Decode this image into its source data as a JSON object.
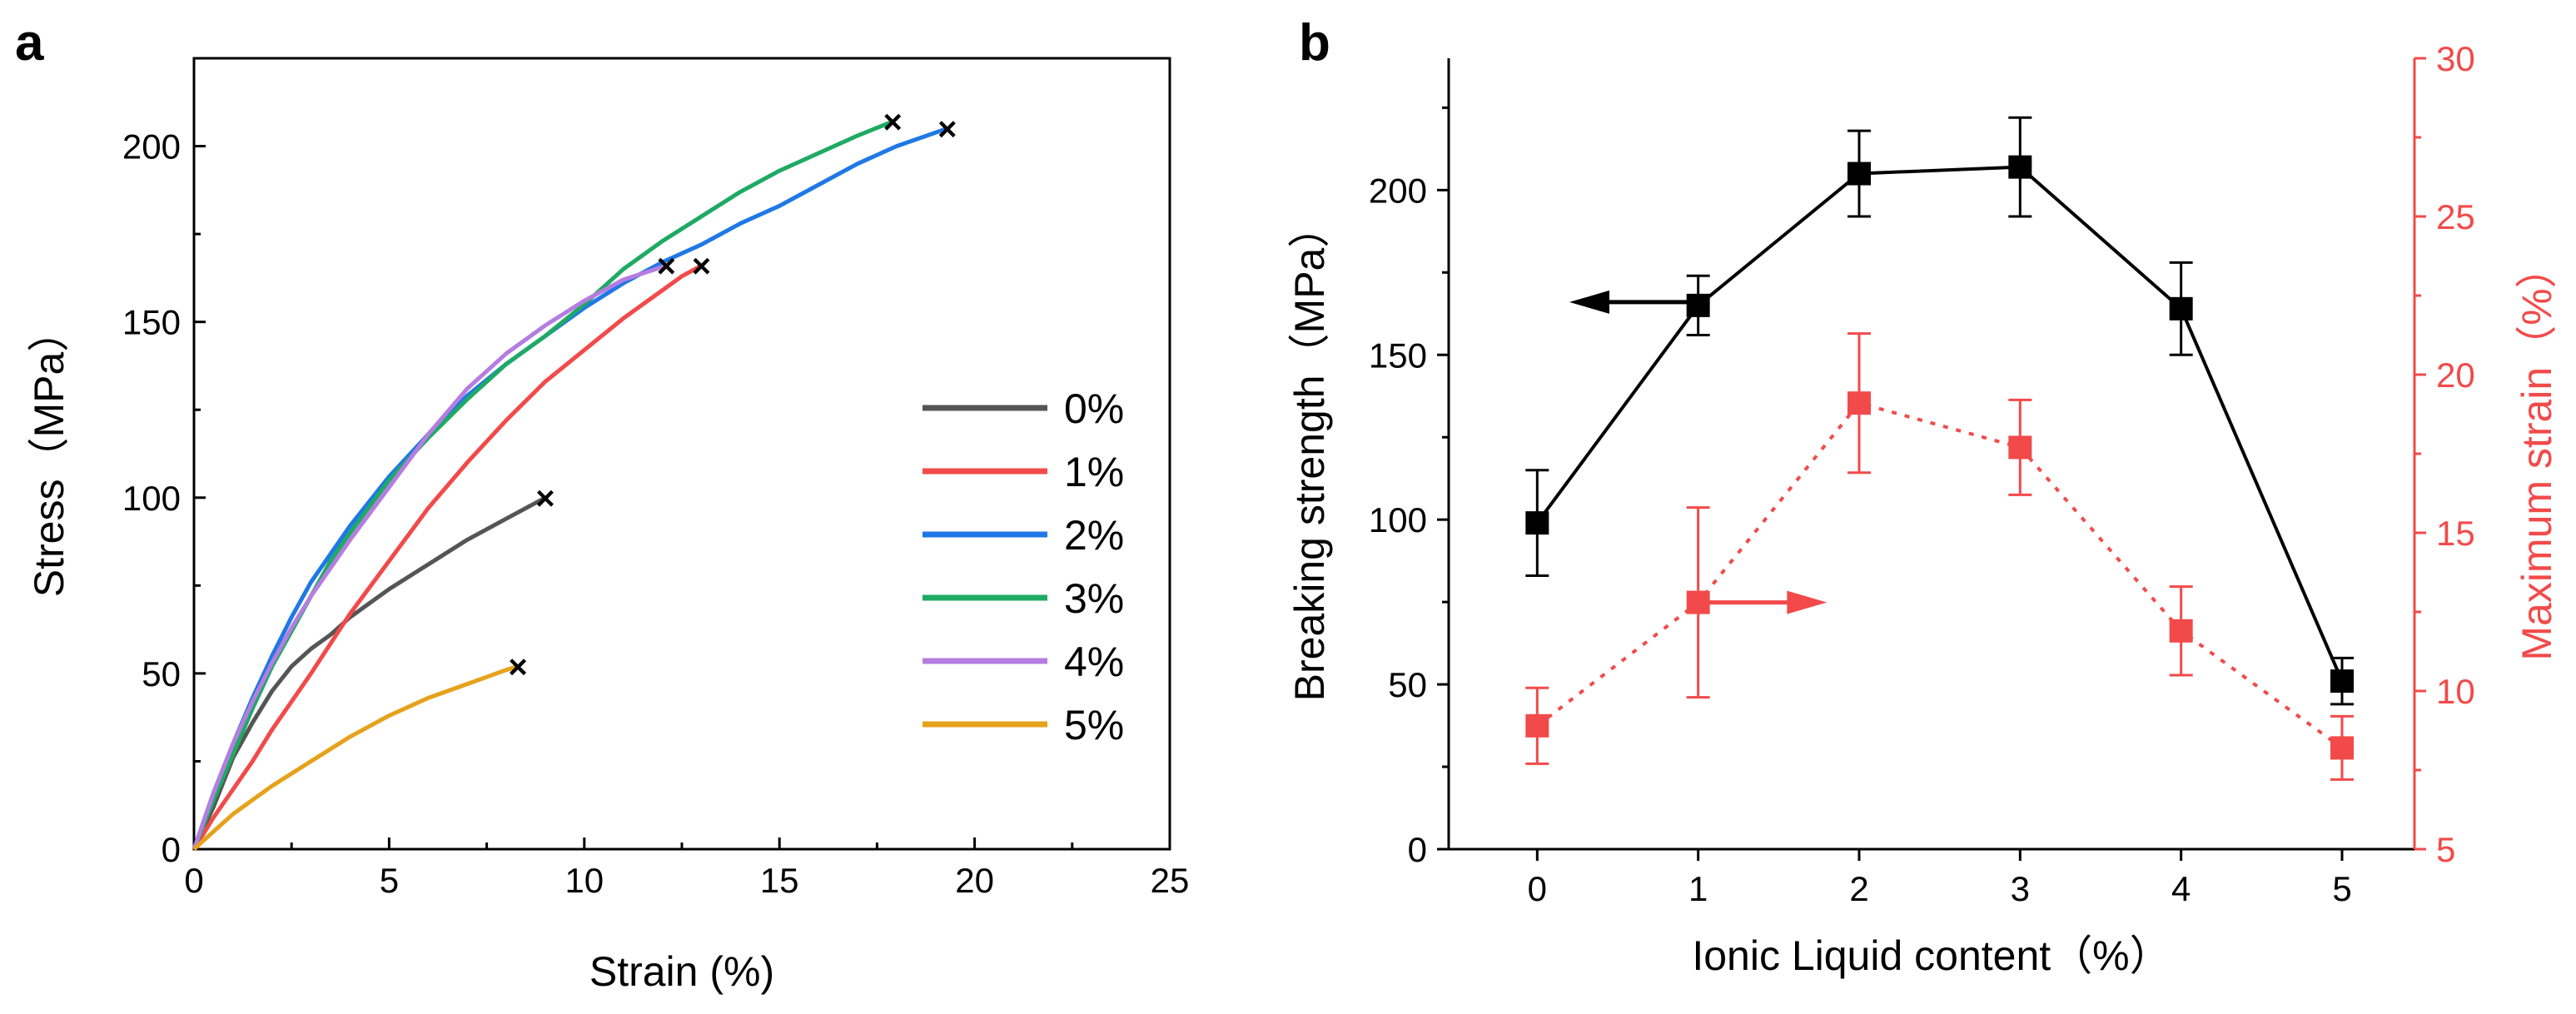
{
  "chart_data": [
    {
      "panel": "a",
      "type": "line",
      "xlabel": "Strain (%)",
      "ylabel": "Stress（MPa）",
      "xlim": [
        0,
        25
      ],
      "ylim": [
        0,
        225
      ],
      "xticks": [
        0,
        5,
        10,
        15,
        20,
        25
      ],
      "yticks": [
        0,
        50,
        100,
        150,
        200
      ],
      "legend_position": "right",
      "break_marker": "×",
      "series": [
        {
          "name": "0%",
          "color": "#555555",
          "points": [
            [
              0,
              0
            ],
            [
              0.5,
              12
            ],
            [
              1,
              26
            ],
            [
              1.5,
              36
            ],
            [
              2,
              45
            ],
            [
              2.5,
              52
            ],
            [
              3,
              57
            ],
            [
              3.5,
              61
            ],
            [
              4,
              66
            ],
            [
              5,
              74
            ],
            [
              6,
              81
            ],
            [
              7,
              88
            ],
            [
              8,
              94
            ],
            [
              9,
              100
            ]
          ],
          "break": [
            9.0,
            100
          ]
        },
        {
          "name": "1%",
          "color": "#f24a4a",
          "points": [
            [
              0,
              0
            ],
            [
              0.5,
              9
            ],
            [
              1,
              17
            ],
            [
              1.5,
              25
            ],
            [
              2,
              34
            ],
            [
              3,
              50
            ],
            [
              4,
              67
            ],
            [
              5,
              82
            ],
            [
              6,
              97
            ],
            [
              7,
              110
            ],
            [
              8,
              122
            ],
            [
              9,
              133
            ],
            [
              10,
              142
            ],
            [
              11,
              151
            ],
            [
              12,
              159
            ],
            [
              12.5,
              163
            ],
            [
              13,
              166
            ]
          ],
          "break": [
            13.0,
            166
          ]
        },
        {
          "name": "2%",
          "color": "#1f78e6",
          "points": [
            [
              0,
              0
            ],
            [
              0.5,
              16
            ],
            [
              1,
              30
            ],
            [
              1.5,
              43
            ],
            [
              2,
              55
            ],
            [
              2.5,
              66
            ],
            [
              3,
              76
            ],
            [
              3.5,
              84
            ],
            [
              4,
              92
            ],
            [
              5,
              106
            ],
            [
              6,
              118
            ],
            [
              7,
              129
            ],
            [
              8,
              138
            ],
            [
              9,
              146
            ],
            [
              10,
              154
            ],
            [
              11,
              161
            ],
            [
              12,
              167
            ],
            [
              13,
              172
            ],
            [
              14,
              178
            ],
            [
              15,
              183
            ],
            [
              16,
              189
            ],
            [
              17,
              195
            ],
            [
              18,
              200
            ],
            [
              19.3,
              205
            ]
          ],
          "break": [
            19.3,
            205
          ]
        },
        {
          "name": "3%",
          "color": "#1eaa64",
          "points": [
            [
              0,
              0
            ],
            [
              0.5,
              14
            ],
            [
              1,
              27
            ],
            [
              1.5,
              40
            ],
            [
              2,
              52
            ],
            [
              2.5,
              62
            ],
            [
              3,
              72
            ],
            [
              3.5,
              82
            ],
            [
              4,
              90
            ],
            [
              5,
              105
            ],
            [
              6,
              117
            ],
            [
              7,
              128
            ],
            [
              8,
              138
            ],
            [
              9,
              146
            ],
            [
              10,
              155
            ],
            [
              11,
              165
            ],
            [
              12,
              173
            ],
            [
              13,
              180
            ],
            [
              14,
              187
            ],
            [
              15,
              193
            ],
            [
              16,
              198
            ],
            [
              17,
              203
            ],
            [
              17.9,
              207
            ]
          ],
          "break": [
            17.9,
            207
          ]
        },
        {
          "name": "4%",
          "color": "#b57de0",
          "points": [
            [
              0,
              0
            ],
            [
              0.5,
              16
            ],
            [
              1,
              30
            ],
            [
              1.5,
              42
            ],
            [
              2,
              53
            ],
            [
              2.5,
              63
            ],
            [
              3,
              72
            ],
            [
              3.5,
              80
            ],
            [
              4,
              88
            ],
            [
              5,
              103
            ],
            [
              6,
              118
            ],
            [
              7,
              131
            ],
            [
              8,
              141
            ],
            [
              9,
              149
            ],
            [
              10,
              156
            ],
            [
              11,
              162
            ],
            [
              12.1,
              166
            ]
          ],
          "break": [
            12.1,
            166
          ]
        },
        {
          "name": "5%",
          "color": "#e5a21a",
          "points": [
            [
              0,
              0
            ],
            [
              0.5,
              5
            ],
            [
              1,
              10
            ],
            [
              1.5,
              14
            ],
            [
              2,
              18
            ],
            [
              3,
              25
            ],
            [
              4,
              32
            ],
            [
              5,
              38
            ],
            [
              6,
              43
            ],
            [
              7,
              47
            ],
            [
              8,
              51
            ],
            [
              8.3,
              52
            ]
          ],
          "break": [
            8.3,
            52
          ]
        }
      ]
    },
    {
      "panel": "b",
      "type": "line",
      "xlabel": "Ionic Liquid content（%）",
      "ylabel_left": "Breaking strength（MPa）",
      "ylabel_right": "Maximum strain（%）",
      "xlim": [
        -0.55,
        5.45
      ],
      "ylim_left": [
        0,
        240
      ],
      "ylim_right": [
        5,
        30
      ],
      "xticks": [
        0,
        1,
        2,
        3,
        4,
        5
      ],
      "yticks_left": [
        0,
        50,
        100,
        150,
        200
      ],
      "yticks_right": [
        5,
        10,
        15,
        20,
        25,
        30
      ],
      "left_color": "#000000",
      "right_color": "#f24a4a",
      "series": [
        {
          "name": "Breaking strength",
          "axis": "left",
          "color": "#000000",
          "style": "solid",
          "x": [
            0,
            1,
            2,
            3,
            4,
            5
          ],
          "values": [
            99,
            165,
            205,
            207,
            164,
            51
          ],
          "err": [
            16,
            9,
            13,
            15,
            14,
            7
          ]
        },
        {
          "name": "Maximum strain",
          "axis": "right",
          "color": "#f24a4a",
          "style": "dotted",
          "x": [
            0,
            1,
            2,
            3,
            4,
            5
          ],
          "values": [
            8.9,
            12.8,
            19.1,
            17.7,
            11.9,
            8.2
          ],
          "err": [
            1.2,
            3.0,
            2.2,
            1.5,
            1.4,
            1.0
          ]
        }
      ],
      "annotations": [
        {
          "arrow": "left",
          "axis": "left",
          "from": [
            1.0,
            166
          ],
          "to": [
            0.2,
            166
          ]
        },
        {
          "arrow": "right",
          "axis": "right",
          "from": [
            1.0,
            12.8
          ],
          "to": [
            1.8,
            12.8
          ]
        }
      ]
    }
  ]
}
